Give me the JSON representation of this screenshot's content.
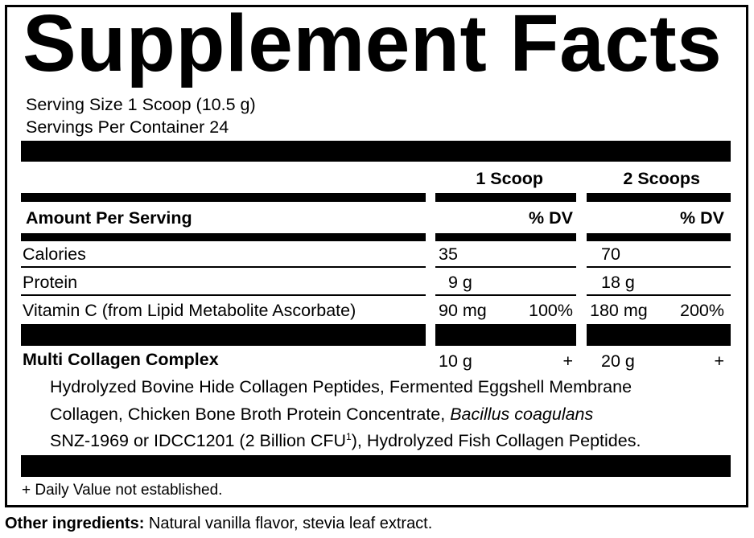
{
  "title": "Supplement Facts",
  "serving_size": "Serving Size 1 Scoop (10.5 g)",
  "servings_per_container": "Servings Per Container 24",
  "columns": {
    "col1": "1 Scoop",
    "col2": "2 Scoops"
  },
  "amount_per_serving": "Amount Per Serving",
  "dv_label": "% DV",
  "rows": [
    {
      "name": "Calories",
      "amount1": "35",
      "dv1": "",
      "amount2": "70",
      "dv2": ""
    },
    {
      "name": "Protein",
      "amount1": "9 g",
      "dv1": "",
      "amount2": "18 g",
      "dv2": ""
    },
    {
      "name": "Vitamin C (from Lipid Metabolite Ascorbate)",
      "amount1": "90 mg",
      "dv1": "100%",
      "amount2": "180 mg",
      "dv2": "200%"
    }
  ],
  "blend": {
    "name": "Multi Collagen Complex",
    "amount1": "10 g",
    "dv1": "+",
    "amount2": "20 g",
    "dv2": "+",
    "line1": "Hydrolyzed Bovine Hide Collagen Peptides, Fermented Eggshell Membrane",
    "line2a": "Collagen, Chicken Bone Broth Protein Concentrate, ",
    "line2b": "Bacillus coagulans",
    "line3a": "SNZ-1969 or IDCC1201 (2 Billion CFU",
    "line3sup": "1",
    "line3b": "), Hydrolyzed Fish Collagen Peptides."
  },
  "footnote": "+ Daily Value not established.",
  "other_ingredients": {
    "label": "Other ingredients:",
    "text": " Natural vanilla flavor, stevia leaf extract."
  }
}
